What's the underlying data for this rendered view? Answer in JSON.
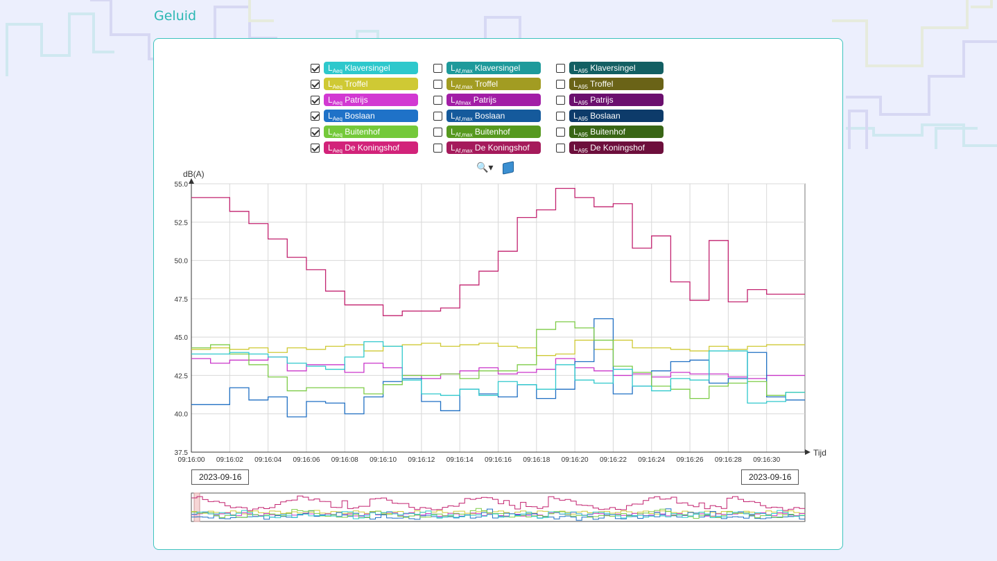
{
  "page": {
    "title": "Geluid"
  },
  "legend": {
    "columns": [
      [
        {
          "prefix": "L",
          "sub": "Aeq",
          "name": "Klaversingel",
          "checked": true,
          "color": "#2ec8cc"
        },
        {
          "prefix": "L",
          "sub": "Aeq",
          "name": "Troffel",
          "checked": true,
          "color": "#cfc934"
        },
        {
          "prefix": "L",
          "sub": "Aeq",
          "name": "Patrijs",
          "checked": true,
          "color": "#d239d2"
        },
        {
          "prefix": "L",
          "sub": "Aeq",
          "name": "Boslaan",
          "checked": true,
          "color": "#1f72c8"
        },
        {
          "prefix": "L",
          "sub": "Aeq",
          "name": "Buitenhof",
          "checked": true,
          "color": "#74c93a"
        },
        {
          "prefix": "L",
          "sub": "Aeq",
          "name": "De Koningshof",
          "checked": true,
          "color": "#d2237a"
        }
      ],
      [
        {
          "prefix": "L",
          "sub": "Af,max",
          "name": "Klaversingel",
          "checked": false,
          "color": "#1e9a9b"
        },
        {
          "prefix": "L",
          "sub": "Af,max",
          "name": "Troffel",
          "checked": false,
          "color": "#a29c22"
        },
        {
          "prefix": "L",
          "sub": "Afmax",
          "name": "Patrijs",
          "checked": false,
          "color": "#a21ea6"
        },
        {
          "prefix": "L",
          "sub": "Af,max",
          "name": "Boslaan",
          "checked": false,
          "color": "#155a9c"
        },
        {
          "prefix": "L",
          "sub": "Af,max",
          "name": "Buitenhof",
          "checked": false,
          "color": "#56991f"
        },
        {
          "prefix": "L",
          "sub": "Af,max",
          "name": "De Koningshof",
          "checked": false,
          "color": "#a51a5b"
        }
      ],
      [
        {
          "prefix": "L",
          "sub": "A95",
          "name": "Klaversingel",
          "checked": false,
          "color": "#135f63"
        },
        {
          "prefix": "L",
          "sub": "A95",
          "name": "Troffel",
          "checked": false,
          "color": "#6a6317"
        },
        {
          "prefix": "L",
          "sub": "A95",
          "name": "Patrijs",
          "checked": false,
          "color": "#6b0f6e"
        },
        {
          "prefix": "L",
          "sub": "A95",
          "name": "Boslaan",
          "checked": false,
          "color": "#0d3b6a"
        },
        {
          "prefix": "L",
          "sub": "A95",
          "name": "Buitenhof",
          "checked": false,
          "color": "#396616"
        },
        {
          "prefix": "L",
          "sub": "A95",
          "name": "De Koningshof",
          "checked": false,
          "color": "#6d0f3c"
        }
      ]
    ]
  },
  "toolbar": {
    "zoom_icon": "magnifier-dropdown-icon",
    "book_icon": "book-icon"
  },
  "range": {
    "start_date": "2023-09-16",
    "end_date": "2023-09-16"
  },
  "chart_data": {
    "type": "line",
    "step": true,
    "ylabel": "dB(A)",
    "xlabel": "Tijd",
    "ylim": [
      37.5,
      55.0
    ],
    "yticks": [
      "37.5",
      "40.0",
      "42.5",
      "45.0",
      "47.5",
      "50.0",
      "52.5",
      "55.0"
    ],
    "xticks": [
      "09:16:00",
      "09:16:02",
      "09:16:04",
      "09:16:06",
      "09:16:08",
      "09:16:10",
      "09:16:12",
      "09:16:14",
      "09:16:16",
      "09:16:18",
      "09:16:20",
      "09:16:22",
      "09:16:24",
      "09:16:26",
      "09:16:28",
      "09:16:30"
    ],
    "x": [
      "09:16:00",
      "09:16:01",
      "09:16:02",
      "09:16:03",
      "09:16:04",
      "09:16:05",
      "09:16:06",
      "09:16:07",
      "09:16:08",
      "09:16:09",
      "09:16:10",
      "09:16:11",
      "09:16:12",
      "09:16:13",
      "09:16:14",
      "09:16:15",
      "09:16:16",
      "09:16:17",
      "09:16:18",
      "09:16:19",
      "09:16:20",
      "09:16:21",
      "09:16:22",
      "09:16:23",
      "09:16:24",
      "09:16:25",
      "09:16:26",
      "09:16:27",
      "09:16:28",
      "09:16:29",
      "09:16:30",
      "09:16:31"
    ],
    "grid": true,
    "series": [
      {
        "name": "LAeq De Koningshof",
        "color": "#c2226f",
        "values": [
          54.1,
          54.1,
          53.2,
          52.4,
          51.4,
          50.2,
          49.4,
          48.0,
          47.1,
          47.1,
          46.4,
          46.7,
          46.7,
          46.9,
          48.4,
          49.3,
          50.6,
          52.8,
          53.3,
          54.7,
          54.1,
          53.5,
          53.7,
          50.8,
          51.6,
          48.6,
          47.4,
          51.3,
          47.3,
          48.1,
          47.8,
          47.8
        ]
      },
      {
        "name": "LAeq Troffel",
        "color": "#cfc934",
        "values": [
          44.2,
          44.3,
          44.2,
          44.3,
          44.0,
          44.3,
          44.2,
          44.4,
          44.5,
          44.1,
          44.4,
          44.5,
          44.6,
          44.4,
          44.5,
          44.6,
          44.4,
          44.3,
          43.8,
          43.9,
          44.8,
          44.2,
          44.8,
          44.3,
          44.3,
          44.2,
          44.1,
          44.4,
          44.2,
          44.4,
          44.5,
          44.5
        ]
      },
      {
        "name": "LAeq Patrijs",
        "color": "#c935c9",
        "values": [
          43.6,
          43.3,
          43.5,
          43.5,
          43.7,
          42.8,
          43.2,
          43.2,
          42.7,
          43.3,
          43.0,
          42.5,
          42.3,
          42.6,
          42.8,
          43.0,
          42.6,
          42.7,
          42.9,
          43.6,
          43.0,
          42.8,
          42.5,
          42.6,
          42.4,
          42.7,
          42.6,
          42.6,
          42.4,
          42.3,
          42.5,
          42.5
        ]
      },
      {
        "name": "LAeq Boslaan",
        "color": "#1f6fc3",
        "values": [
          40.6,
          40.6,
          41.7,
          40.9,
          41.1,
          39.8,
          40.8,
          40.7,
          40.0,
          41.1,
          42.1,
          42.3,
          40.8,
          40.2,
          41.6,
          41.3,
          41.1,
          41.9,
          41.0,
          41.6,
          43.4,
          46.2,
          41.3,
          41.8,
          42.8,
          43.4,
          43.5,
          42.0,
          42.3,
          44.0,
          41.1,
          40.9
        ]
      },
      {
        "name": "LAeq Buitenhof",
        "color": "#7ccb45",
        "values": [
          44.3,
          44.5,
          43.9,
          43.2,
          42.4,
          41.5,
          41.7,
          41.7,
          41.7,
          41.3,
          41.9,
          42.5,
          42.5,
          42.6,
          42.3,
          42.8,
          42.8,
          43.2,
          45.5,
          46.0,
          45.6,
          44.8,
          43.1,
          42.7,
          41.8,
          41.6,
          41.0,
          41.8,
          42.0,
          42.1,
          41.2,
          41.4
        ]
      },
      {
        "name": "LAeq Klaversingel",
        "color": "#2ec8cc",
        "values": [
          43.9,
          43.9,
          44.0,
          43.9,
          43.7,
          43.3,
          43.1,
          42.9,
          43.7,
          44.7,
          44.4,
          42.2,
          41.3,
          41.2,
          41.6,
          41.2,
          42.1,
          41.9,
          41.6,
          43.2,
          42.2,
          42.0,
          42.9,
          41.8,
          41.5,
          42.3,
          42.2,
          44.1,
          44.1,
          40.7,
          40.8,
          41.4
        ]
      }
    ]
  }
}
